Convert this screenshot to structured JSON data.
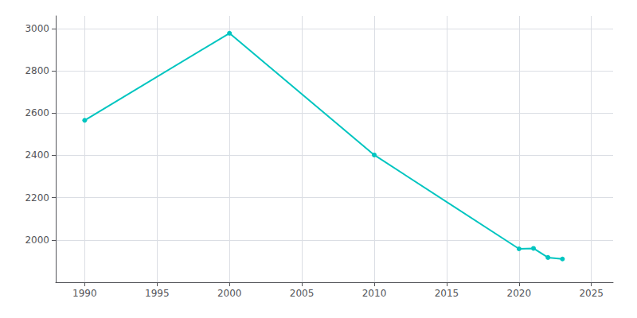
{
  "chart_data": {
    "type": "line",
    "x": [
      1990,
      2000,
      2010,
      2020,
      2021,
      2022,
      2023
    ],
    "values": [
      2566,
      2978,
      2402,
      1958,
      1960,
      1917,
      1910
    ],
    "color": "#00C5C0",
    "marker": "circle",
    "xlim": [
      1988,
      2026.5
    ],
    "ylim": [
      1800,
      3060
    ],
    "xticks": [
      1990,
      1995,
      2000,
      2005,
      2010,
      2015,
      2020,
      2025
    ],
    "yticks": [
      2000,
      2200,
      2400,
      2600,
      2800,
      3000
    ],
    "grid": true
  }
}
